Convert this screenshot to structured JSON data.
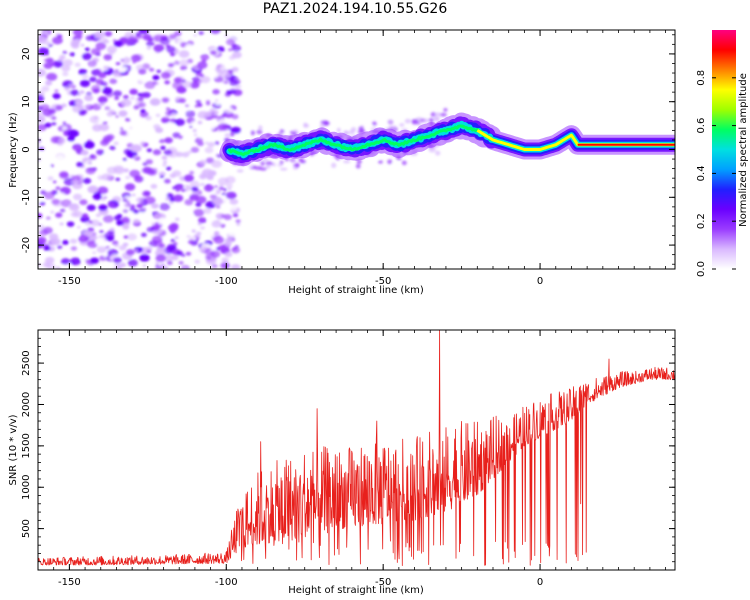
{
  "title": "PAZ1.2024.194.10.55.G26",
  "colors": {
    "snr_line": "#e8201c",
    "colormap": [
      "#ffffff",
      "#d9b8ff",
      "#9a3cff",
      "#6a00ff",
      "#2020ff",
      "#00a0ff",
      "#00e0e0",
      "#00ff60",
      "#a0ff00",
      "#ffff00",
      "#ff8000",
      "#ff0000",
      "#ff0080"
    ]
  },
  "chart_data": [
    {
      "type": "heatmap",
      "name": "spectrogram",
      "xlabel": "Height of straight line (km)",
      "ylabel": "Frequency (Hz)",
      "xlim": [
        -160,
        43
      ],
      "ylim": [
        -25,
        25
      ],
      "x_ticks": [
        -150,
        -100,
        -50,
        0
      ],
      "x_ticklabels": [
        "-150",
        "-100",
        "-50",
        "0"
      ],
      "y_ticks": [
        -20,
        -10,
        0,
        10,
        20
      ],
      "y_ticklabels": [
        "-20",
        "-10",
        "0",
        "10",
        "20"
      ],
      "noise_region_x": [
        -160,
        -96
      ],
      "ridge_x": [
        -100,
        -95,
        -90,
        -85,
        -80,
        -75,
        -70,
        -65,
        -60,
        -55,
        -50,
        -45,
        -40,
        -35,
        -30,
        -25,
        -20,
        -15,
        -10,
        -5,
        0,
        5,
        10,
        12,
        15,
        20,
        30,
        43
      ],
      "ridge_freq": [
        0,
        -1,
        0,
        1,
        0,
        1,
        2,
        1,
        0,
        1,
        2,
        1,
        2,
        3,
        4,
        5,
        4,
        2,
        1,
        0,
        0,
        1,
        3,
        1,
        1,
        1,
        1,
        1
      ],
      "colorbar": {
        "label": "Normalized spectral amplitude",
        "range": [
          0,
          1
        ],
        "ticks": [
          0.0,
          0.2,
          0.4,
          0.6,
          0.8
        ],
        "ticklabels": [
          "0.0",
          "0.2",
          "0.4",
          "0.6",
          "0.8"
        ]
      }
    },
    {
      "type": "line",
      "name": "snr",
      "xlabel": "Height of straight line (km)",
      "ylabel": "SNR (10 * v/v)",
      "xlim": [
        -160,
        43
      ],
      "ylim": [
        0,
        2900
      ],
      "x_ticks": [
        -150,
        -100,
        -50,
        0
      ],
      "x_ticklabels": [
        "-150",
        "-100",
        "-50",
        "0"
      ],
      "y_ticks": [
        500,
        1000,
        1500,
        2000,
        2500
      ],
      "y_ticklabels": [
        "500",
        "1000",
        "1500",
        "2000",
        "2500"
      ],
      "envelope_x": [
        -160,
        -140,
        -120,
        -100,
        -97,
        -95,
        -92,
        -88,
        -85,
        -80,
        -75,
        -70,
        -65,
        -60,
        -55,
        -50,
        -45,
        -40,
        -35,
        -32,
        -30,
        -25,
        -20,
        -15,
        -10,
        -5,
        0,
        5,
        10,
        13,
        15,
        20,
        25,
        30,
        35,
        43
      ],
      "envelope_base": [
        60,
        60,
        70,
        80,
        200,
        250,
        300,
        300,
        350,
        350,
        400,
        400,
        500,
        500,
        550,
        550,
        600,
        600,
        650,
        650,
        700,
        800,
        900,
        1100,
        1300,
        1500,
        1600,
        1700,
        1800,
        1900,
        2000,
        2100,
        2200,
        2250,
        2300,
        2300
      ],
      "envelope_top": [
        150,
        170,
        180,
        220,
        700,
        900,
        1100,
        1300,
        1300,
        1400,
        1500,
        1500,
        1500,
        1500,
        1600,
        1600,
        1600,
        1600,
        1700,
        1700,
        1750,
        1800,
        1800,
        1850,
        1900,
        2000,
        2100,
        2150,
        2200,
        2300,
        2300,
        2350,
        2400,
        2400,
        2450,
        2450
      ],
      "spikes": [
        {
          "x": -89,
          "y": 1550
        },
        {
          "x": -71,
          "y": 1950
        },
        {
          "x": -52,
          "y": 1800
        },
        {
          "x": -32,
          "y": 2900
        },
        {
          "x": -27,
          "y": 1700
        },
        {
          "x": -18,
          "y": 1550
        },
        {
          "x": 22,
          "y": 2550
        }
      ],
      "dips": [
        {
          "x": -8,
          "y": 150
        },
        {
          "x": 13,
          "y": 800
        }
      ]
    }
  ]
}
